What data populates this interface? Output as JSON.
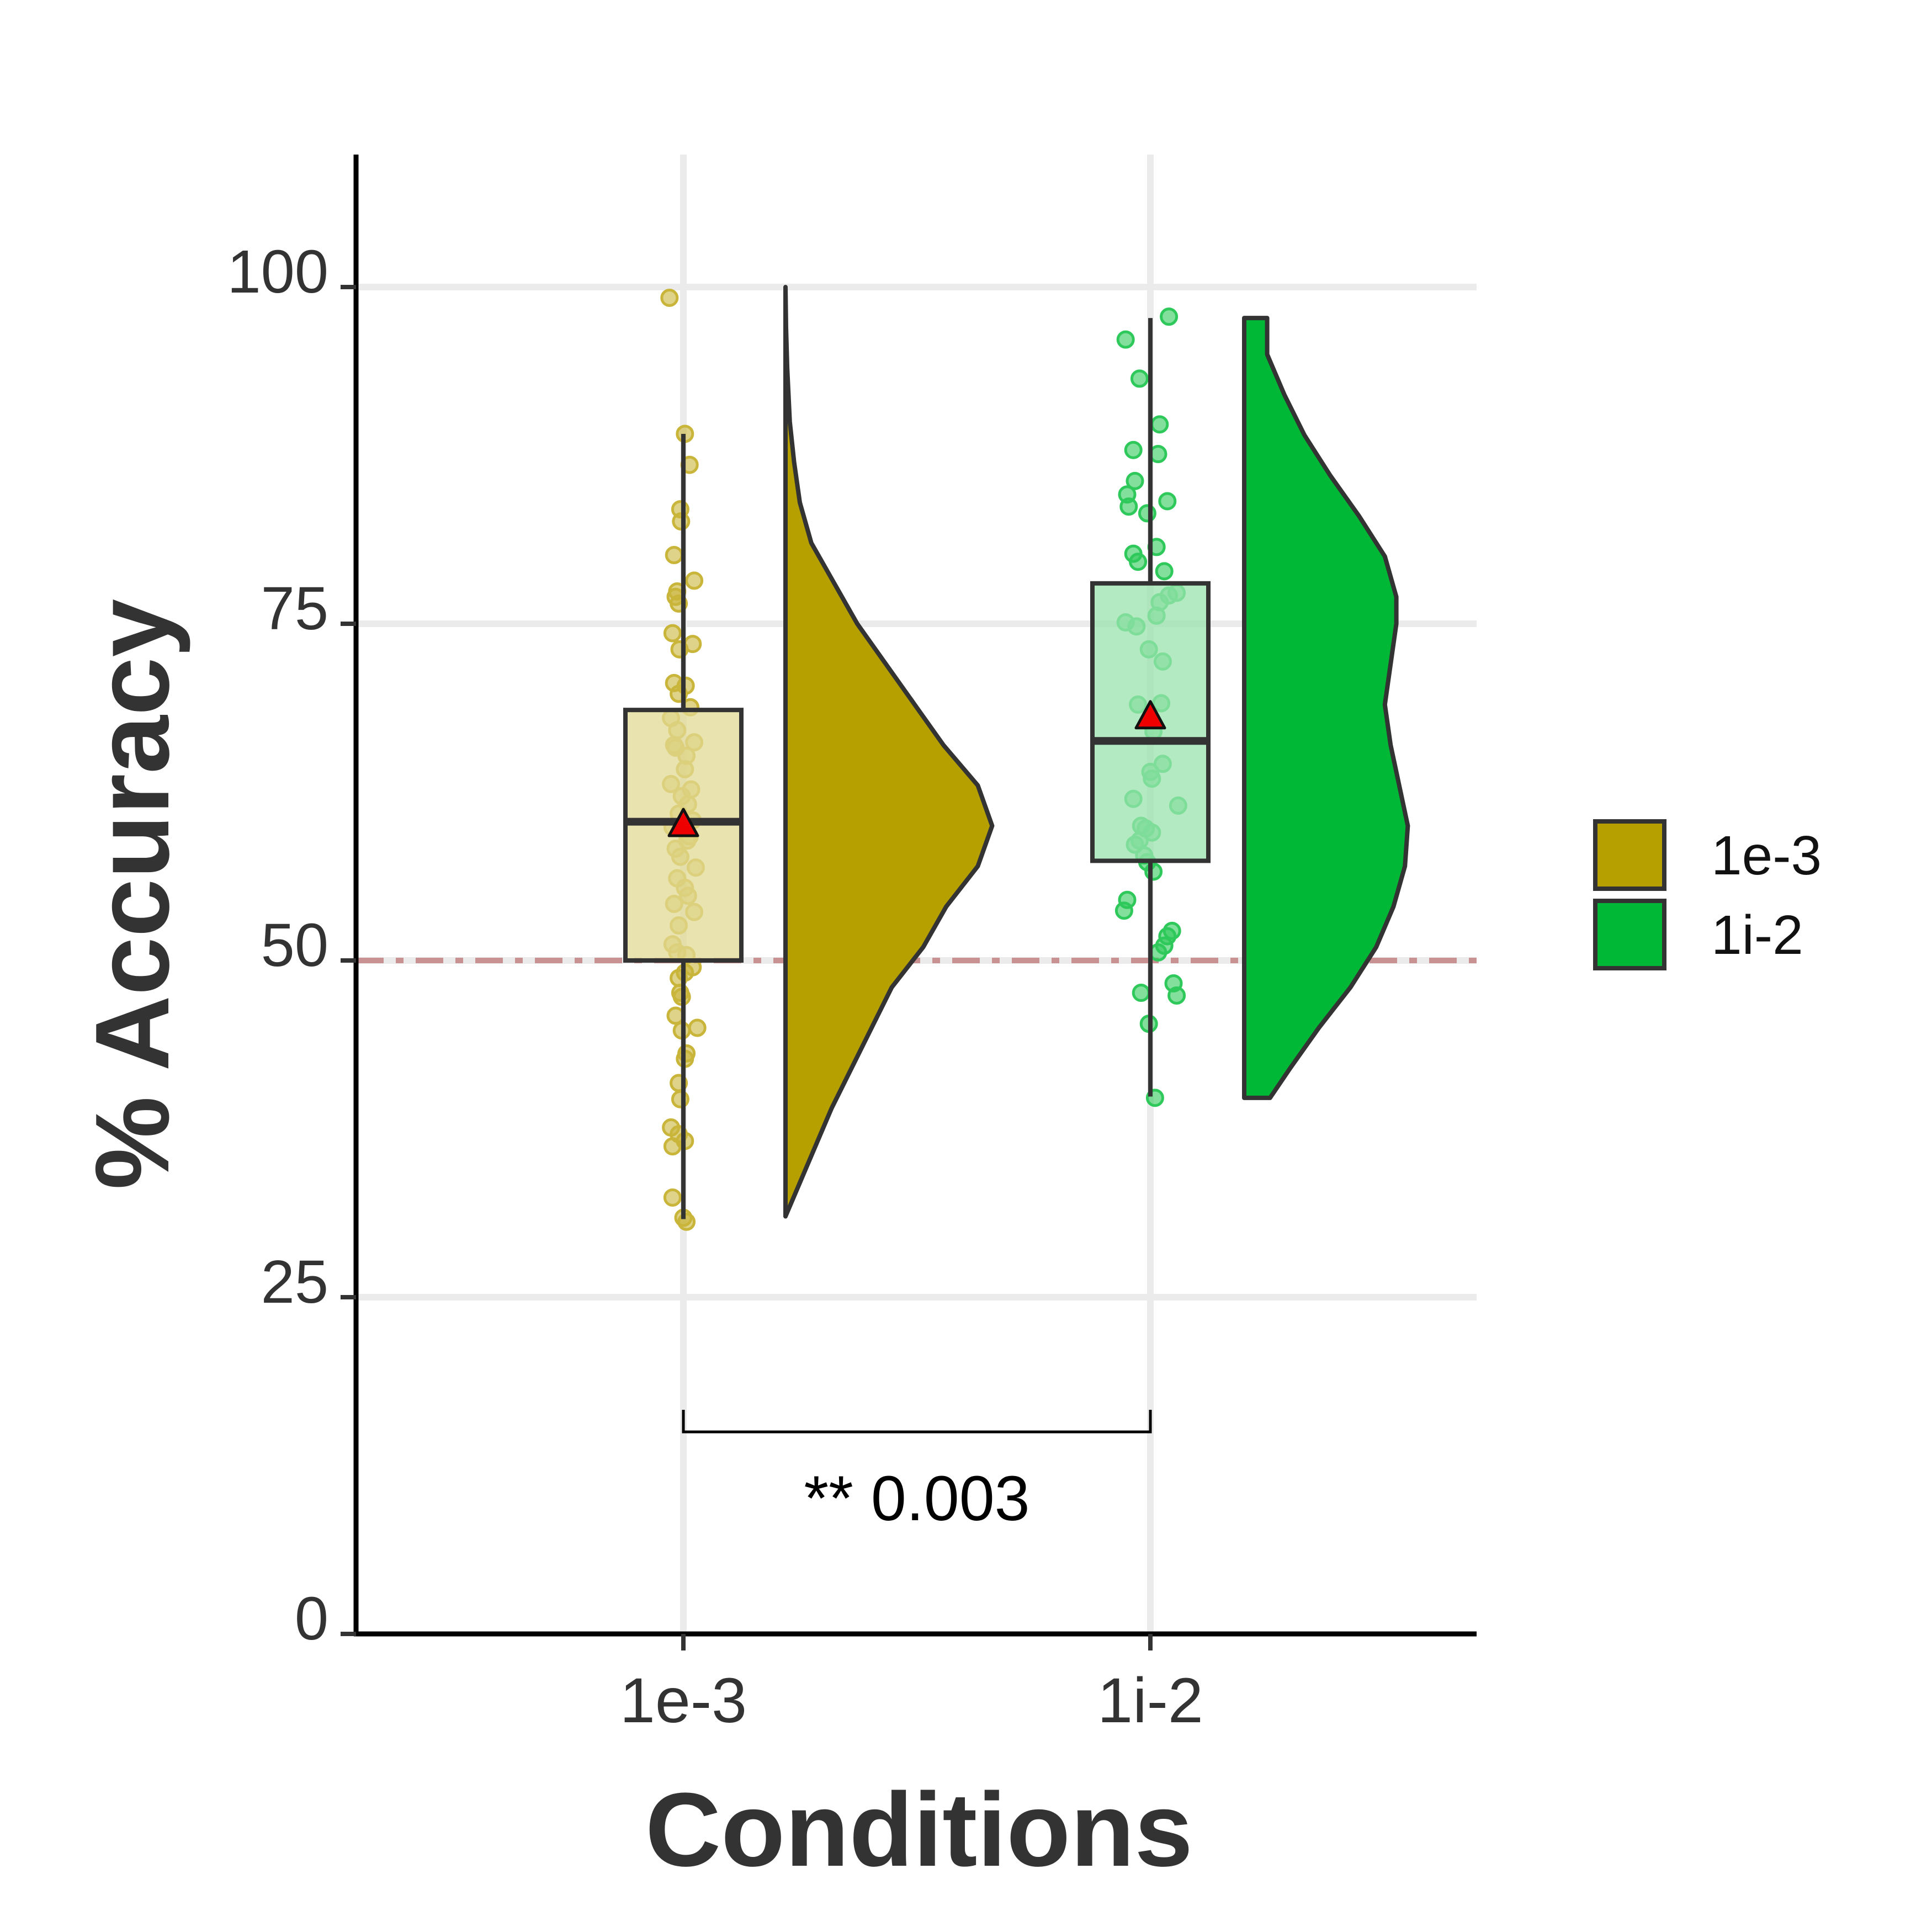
{
  "chart_data": {
    "type": "raincloud",
    "xlabel": "Conditions",
    "ylabel": "% Accuracy",
    "categories": [
      "1e-3",
      "1i-2"
    ],
    "ylim": [
      0,
      110
    ],
    "yticks": [
      0,
      25,
      50,
      75,
      100
    ],
    "ytick_labels": [
      "0",
      "25",
      "50",
      "75",
      "100"
    ],
    "grid": true,
    "chance_line": {
      "value": 50,
      "color": "#c99292",
      "style": "dash-dot"
    },
    "legend": {
      "position": "right",
      "entries": [
        "1e-3",
        "1i-2"
      ]
    },
    "series": [
      {
        "name": "1e-3",
        "color": "#b5a000",
        "box_fill": "#e2d994",
        "point_color": "#c9b53a",
        "box": {
          "q1": 50,
          "median": 60.3,
          "q3": 68.6,
          "whisker_low": 30.8,
          "whisker_high": 89.1
        },
        "mean": 60,
        "violin_range": [
          31,
          100
        ],
        "density": [
          [
            31,
            0.0
          ],
          [
            33,
            0.04
          ],
          [
            36,
            0.1
          ],
          [
            39,
            0.16
          ],
          [
            42,
            0.23
          ],
          [
            45,
            0.3
          ],
          [
            48,
            0.37
          ],
          [
            51,
            0.48
          ],
          [
            54,
            0.56
          ],
          [
            57,
            0.67
          ],
          [
            60,
            0.72
          ],
          [
            63,
            0.67
          ],
          [
            66,
            0.55
          ],
          [
            69,
            0.45
          ],
          [
            72,
            0.35
          ],
          [
            75,
            0.25
          ],
          [
            78,
            0.17
          ],
          [
            81,
            0.09
          ],
          [
            84,
            0.05
          ],
          [
            87,
            0.03
          ],
          [
            90,
            0.015
          ],
          [
            94,
            0.006
          ],
          [
            97,
            0.002
          ],
          [
            100,
            0.0
          ]
        ],
        "points": [
          99.2,
          89.1,
          86.8,
          83.5,
          82.6,
          80.1,
          78.2,
          77.4,
          77.0,
          76.5,
          74.3,
          73.5,
          73.1,
          70.6,
          70.4,
          69.8,
          68.8,
          68.0,
          67.1,
          66.2,
          66.0,
          65.8,
          65.2,
          64.2,
          63.1,
          62.7,
          62.2,
          61.6,
          60.9,
          60.4,
          59.9,
          59.2,
          58.9,
          58.3,
          57.7,
          56.9,
          56.1,
          55.4,
          54.8,
          54.2,
          53.6,
          52.6,
          51.2,
          50.6,
          50.4,
          49.5,
          49.1,
          48.7,
          47.6,
          47.3,
          45.9,
          45.0,
          44.8,
          43.1,
          42.7,
          40.9,
          39.7,
          37.6,
          37.1,
          36.6,
          36.2,
          32.4,
          30.9,
          30.6
        ],
        "jitter": [
          -18,
          2,
          8,
          -4,
          -3,
          -12,
          14,
          -8,
          -10,
          -6,
          -14,
          12,
          -5,
          -12,
          3,
          -6,
          9,
          -16,
          -8,
          14,
          -12,
          -10,
          4,
          2,
          -16,
          10,
          -2,
          6,
          -6,
          12,
          -14,
          8,
          5,
          -10,
          -4,
          16,
          -8,
          2,
          6,
          -12,
          14,
          -6,
          -14,
          -8,
          4,
          12,
          2,
          -6,
          -4,
          -2,
          -10,
          18,
          -2,
          4,
          2,
          -6,
          -4,
          -16,
          -6,
          2,
          -14,
          -14,
          0,
          4
        ]
      },
      {
        "name": "1i-2",
        "color": "#00b835",
        "box_fill": "#9ae3ad",
        "point_color": "#2ec95a",
        "box": {
          "q1": 57.4,
          "median": 66.3,
          "q3": 78,
          "whisker_low": 39.9,
          "whisker_high": 97.7
        },
        "mean": 68,
        "violin_range": [
          39.8,
          97.7
        ],
        "density": [
          [
            39.8,
            0.09
          ],
          [
            42,
            0.16
          ],
          [
            45,
            0.26
          ],
          [
            48,
            0.37
          ],
          [
            51,
            0.46
          ],
          [
            54,
            0.52
          ],
          [
            57,
            0.56
          ],
          [
            60,
            0.57
          ],
          [
            63,
            0.54
          ],
          [
            66,
            0.51
          ],
          [
            69,
            0.49
          ],
          [
            72,
            0.51
          ],
          [
            75,
            0.53
          ],
          [
            77,
            0.53
          ],
          [
            80,
            0.49
          ],
          [
            83,
            0.4
          ],
          [
            86,
            0.3
          ],
          [
            89,
            0.21
          ],
          [
            92,
            0.14
          ],
          [
            95,
            0.08
          ],
          [
            97.7,
            0.08
          ]
        ],
        "points": [
          97.8,
          96.1,
          93.2,
          89.8,
          87.9,
          87.6,
          85.6,
          84.6,
          84.1,
          83.7,
          83.2,
          80.7,
          80.2,
          79.6,
          78.9,
          77.3,
          77.1,
          76.6,
          75.6,
          75.1,
          74.8,
          73.1,
          72.2,
          69.1,
          69.0,
          67.0,
          64.6,
          64.0,
          63.5,
          62.0,
          61.5,
          60.0,
          59.8,
          59.5,
          58.9,
          58.6,
          57.8,
          57.3,
          56.6,
          54.5,
          53.7,
          52.2,
          51.8,
          51.1,
          50.6,
          48.3,
          47.6,
          47.4,
          45.3,
          39.8
        ],
        "jitter": [
          24,
          -32,
          -14,
          12,
          -22,
          10,
          -20,
          -30,
          22,
          -28,
          -4,
          8,
          -22,
          -16,
          18,
          34,
          24,
          12,
          8,
          -32,
          -18,
          -2,
          16,
          14,
          -16,
          4,
          16,
          0,
          2,
          -22,
          36,
          -12,
          -6,
          2,
          -14,
          -20,
          -8,
          -4,
          4,
          -30,
          -34,
          28,
          22,
          18,
          10,
          30,
          -12,
          34,
          -2,
          6
        ]
      }
    ],
    "comparison": {
      "groups": [
        "1e-3",
        "1i-2"
      ],
      "label": "** 0.003",
      "bracket_value": 15
    }
  }
}
